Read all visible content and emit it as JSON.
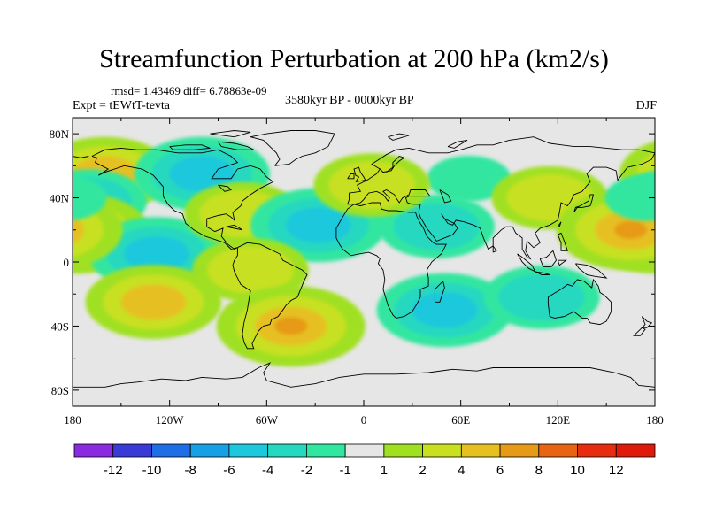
{
  "title": "Streamfunction Perturbation at 200 hPa (km2/s)",
  "stats": "rmsd= 1.43469 diff= 6.78863e-09",
  "experiment": "Expt = tEWtT-tevta",
  "period": "3580kyr BP - 0000kyr BP",
  "season": "DJF",
  "axes": {
    "lat_ticks": [
      {
        "label": "80N",
        "lat": 80
      },
      {
        "label": "40N",
        "lat": 40
      },
      {
        "label": "0",
        "lat": 0
      },
      {
        "label": "40S",
        "lat": -40
      },
      {
        "label": "80S",
        "lat": -80
      }
    ],
    "lon_ticks": [
      {
        "label": "180",
        "lon": -180
      },
      {
        "label": "120W",
        "lon": -120
      },
      {
        "label": "60W",
        "lon": -60
      },
      {
        "label": "0",
        "lon": 0
      },
      {
        "label": "60E",
        "lon": 60
      },
      {
        "label": "120E",
        "lon": 120
      },
      {
        "label": "180",
        "lon": 180
      }
    ],
    "lat_range": [
      -90,
      90
    ],
    "lon_range": [
      -180,
      180
    ]
  },
  "colorbar": {
    "labels": [
      "-12",
      "-10",
      "-8",
      "-6",
      "-4",
      "-2",
      "-1",
      "1",
      "2",
      "4",
      "6",
      "8",
      "10",
      "12"
    ],
    "colors": [
      "#8a2be2",
      "#3a3ad6",
      "#1e6ee6",
      "#16a0e6",
      "#1ec8dc",
      "#26d8c0",
      "#30e6a0",
      "#e6e6e6",
      "#a0e020",
      "#c8e020",
      "#e6c020",
      "#e69a18",
      "#e66414",
      "#e62d10",
      "#e01a0a"
    ]
  },
  "chart_data": {
    "type": "heatmap",
    "variable": "200 hPa streamfunction perturbation",
    "units": "km2/s",
    "features": [
      {
        "sign": "positive",
        "level": 4,
        "lon": -160,
        "lat": 55
      },
      {
        "sign": "negative",
        "level": -4,
        "lon": -100,
        "lat": 55
      },
      {
        "sign": "negative",
        "level": -2,
        "lon": -170,
        "lat": 38
      },
      {
        "sign": "positive",
        "level": 6,
        "lon": -178,
        "lat": 18
      },
      {
        "sign": "negative",
        "level": -4,
        "lon": -128,
        "lat": 5
      },
      {
        "sign": "positive",
        "level": 2,
        "lon": -75,
        "lat": 30
      },
      {
        "sign": "negative",
        "level": -4,
        "lon": -28,
        "lat": 23
      },
      {
        "sign": "negative",
        "level": -2,
        "lon": 45,
        "lat": 22
      },
      {
        "sign": "negative",
        "level": -1,
        "lon": 65,
        "lat": 52
      },
      {
        "sign": "positive",
        "level": 2,
        "lon": 5,
        "lat": 48
      },
      {
        "sign": "positive",
        "level": 4,
        "lon": -130,
        "lat": -25
      },
      {
        "sign": "positive",
        "level": 2,
        "lon": -70,
        "lat": -5
      },
      {
        "sign": "positive",
        "level": 6,
        "lon": -45,
        "lat": -40
      },
      {
        "sign": "negative",
        "level": -4,
        "lon": 50,
        "lat": -30
      },
      {
        "sign": "negative",
        "level": -2,
        "lon": 110,
        "lat": -22
      },
      {
        "sign": "positive",
        "level": 2,
        "lon": 115,
        "lat": 40
      },
      {
        "sign": "positive",
        "level": 6,
        "lon": 165,
        "lat": 20
      },
      {
        "sign": "negative",
        "level": -1,
        "lon": 175,
        "lat": 40
      }
    ]
  }
}
